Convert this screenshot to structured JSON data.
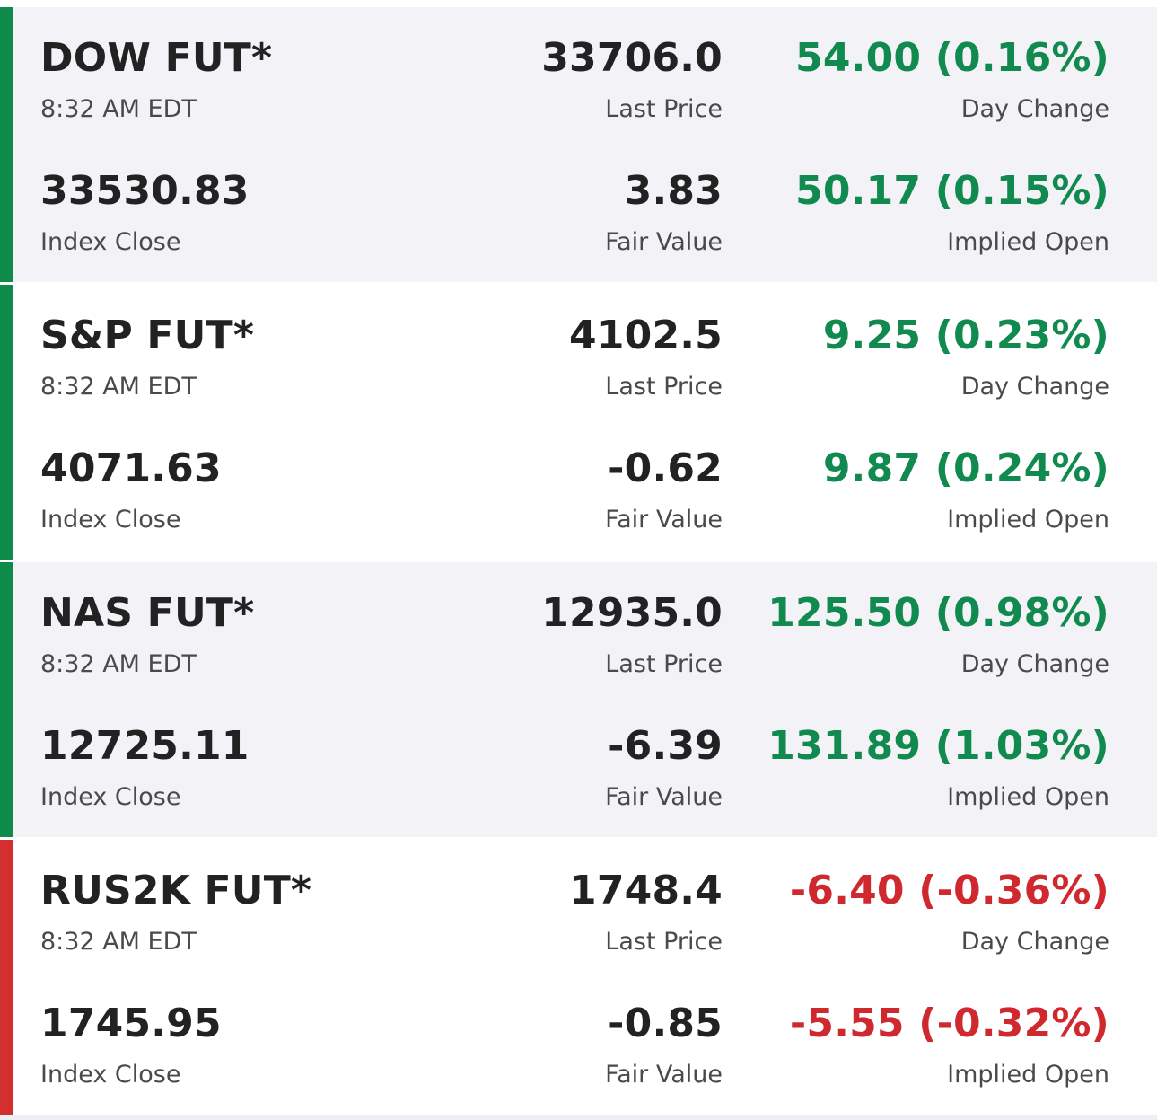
{
  "colors": {
    "positive": "#118a4f",
    "negative": "#d0282f",
    "bar_positive": "#0e8a4a",
    "bar_negative": "#d32f2f"
  },
  "labels": {
    "last_price": "Last Price",
    "day_change": "Day Change",
    "index_close": "Index Close",
    "fair_value": "Fair Value",
    "implied_open": "Implied Open"
  },
  "futures": [
    {
      "name": "DOW FUT*",
      "time": "8:32 AM EDT",
      "last_price": "33706.0",
      "day_change": "54.00 (0.16%)",
      "index_close": "33530.83",
      "fair_value": "3.83",
      "implied_open": "50.17 (0.15%)",
      "direction": "positive"
    },
    {
      "name": "S&P FUT*",
      "time": "8:32 AM EDT",
      "last_price": "4102.5",
      "day_change": "9.25 (0.23%)",
      "index_close": "4071.63",
      "fair_value": "-0.62",
      "implied_open": "9.87 (0.24%)",
      "direction": "positive"
    },
    {
      "name": "NAS FUT*",
      "time": "8:32 AM EDT",
      "last_price": "12935.0",
      "day_change": "125.50 (0.98%)",
      "index_close": "12725.11",
      "fair_value": "-6.39",
      "implied_open": "131.89 (1.03%)",
      "direction": "positive"
    },
    {
      "name": "RUS2K FUT*",
      "time": "8:32 AM EDT",
      "last_price": "1748.4",
      "day_change": "-6.40 (-0.36%)",
      "index_close": "1745.95",
      "fair_value": "-0.85",
      "implied_open": "-5.55 (-0.32%)",
      "direction": "negative"
    }
  ]
}
